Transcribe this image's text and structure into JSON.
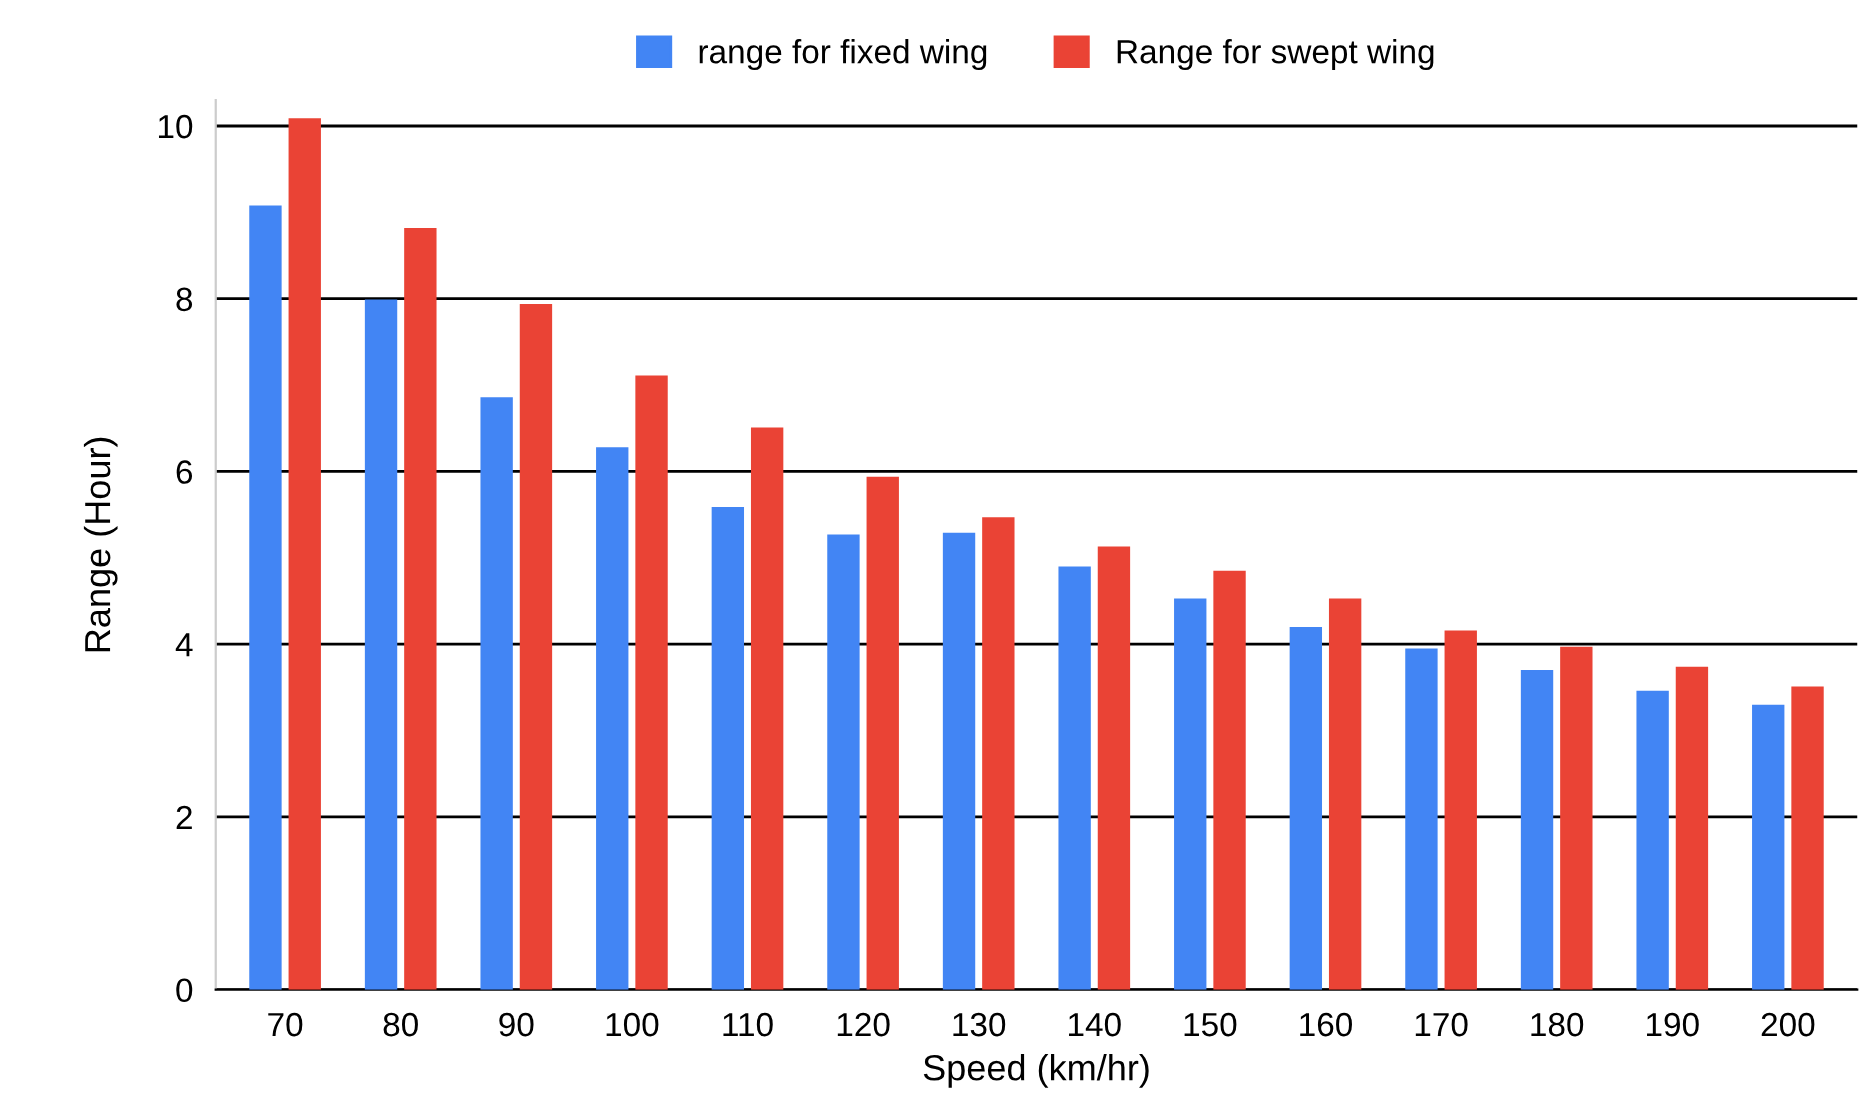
{
  "chart_data": {
    "type": "bar",
    "xlabel": "Speed (km/hr)",
    "ylabel": "Range (Hour)",
    "categories": [
      "70",
      "80",
      "90",
      "100",
      "110",
      "120",
      "130",
      "140",
      "150",
      "160",
      "170",
      "180",
      "190",
      "200"
    ],
    "series": [
      {
        "name": "range for fixed wing",
        "color": "#4285f4",
        "values": [
          9.08,
          7.99,
          6.86,
          6.28,
          5.59,
          5.27,
          5.29,
          4.9,
          4.53,
          4.2,
          3.95,
          3.7,
          3.46,
          3.3
        ]
      },
      {
        "name": "Range for swept wing",
        "color": "#ea4335",
        "values": [
          10.09,
          8.82,
          7.94,
          7.11,
          6.51,
          5.94,
          5.47,
          5.13,
          4.85,
          4.53,
          4.16,
          3.97,
          3.74,
          3.51
        ]
      }
    ],
    "ylim": [
      0,
      10.3
    ],
    "yticks": [
      0,
      2,
      4,
      6,
      8,
      10
    ],
    "grid": "y",
    "legend": "top"
  }
}
